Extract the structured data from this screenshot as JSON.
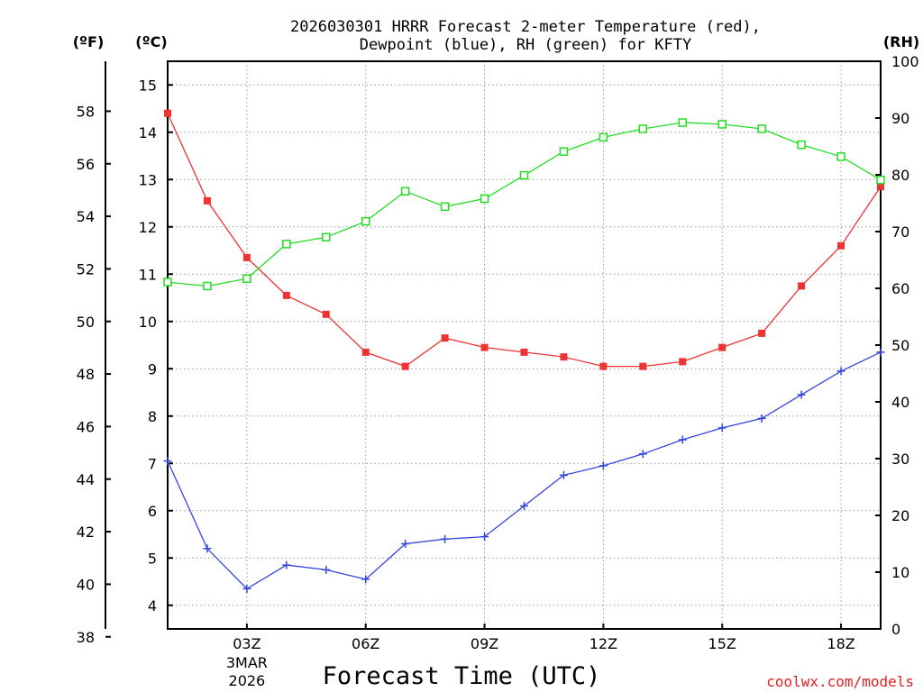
{
  "chart_data": {
    "type": "line",
    "title_line1": "2026030301 HRRR Forecast 2-meter Temperature (red),",
    "title_line2": "Dewpoint (blue), RH (green) for KFTY",
    "xlabel": "Forecast Time (UTC)",
    "credit": "coolwx.com/models",
    "units": {
      "fahrenheit": "(ºF)",
      "celsius": "(ºC)",
      "rh": "(RH)"
    },
    "hours": [
      1,
      2,
      3,
      4,
      5,
      6,
      7,
      8,
      9,
      10,
      11,
      12,
      13,
      14,
      15,
      16,
      17,
      18,
      19
    ],
    "xlim": [
      1,
      19
    ],
    "x_ticks": [
      {
        "hour": 3,
        "label": "03Z"
      },
      {
        "hour": 6,
        "label": "06Z"
      },
      {
        "hour": 9,
        "label": "09Z"
      },
      {
        "hour": 12,
        "label": "12Z"
      },
      {
        "hour": 15,
        "label": "15Z"
      },
      {
        "hour": 18,
        "label": "18Z"
      }
    ],
    "date_labels": [
      "3MAR",
      "2026"
    ],
    "celsius_axis": {
      "min": 3.5,
      "max": 15.5,
      "ticks": [
        4,
        5,
        6,
        7,
        8,
        9,
        10,
        11,
        12,
        13,
        14,
        15
      ]
    },
    "fahrenheit_axis": {
      "ticks": [
        38,
        40,
        42,
        44,
        46,
        48,
        50,
        52,
        54,
        56,
        58
      ]
    },
    "rh_axis": {
      "min": 0,
      "max": 100,
      "ticks": [
        0,
        10,
        20,
        30,
        40,
        50,
        60,
        70,
        80,
        90,
        100
      ]
    },
    "series": [
      {
        "name": "Temperature",
        "color": "#ee3333",
        "axis": "celsius",
        "marker": "filled-square",
        "values": [
          14.4,
          12.55,
          11.35,
          10.55,
          10.15,
          9.35,
          9.05,
          9.65,
          9.45,
          9.35,
          9.25,
          9.05,
          9.05,
          9.15,
          9.45,
          9.75,
          10.75,
          11.6,
          12.85
        ]
      },
      {
        "name": "Dewpoint",
        "color": "#3344dd",
        "axis": "celsius",
        "marker": "plus",
        "values": [
          7.05,
          5.2,
          4.35,
          4.85,
          4.75,
          4.55,
          5.3,
          5.4,
          5.45,
          6.1,
          6.75,
          6.95,
          7.2,
          7.5,
          7.75,
          7.95,
          8.45,
          8.95,
          9.35
        ]
      },
      {
        "name": "RH",
        "color": "#22dd22",
        "axis": "rh",
        "marker": "open-square",
        "values": [
          61.1,
          60.4,
          61.7,
          67.8,
          69.0,
          71.8,
          77.1,
          74.4,
          75.8,
          79.9,
          84.1,
          86.6,
          88.1,
          89.2,
          88.9,
          88.1,
          85.3,
          83.2,
          79.1
        ]
      }
    ]
  }
}
